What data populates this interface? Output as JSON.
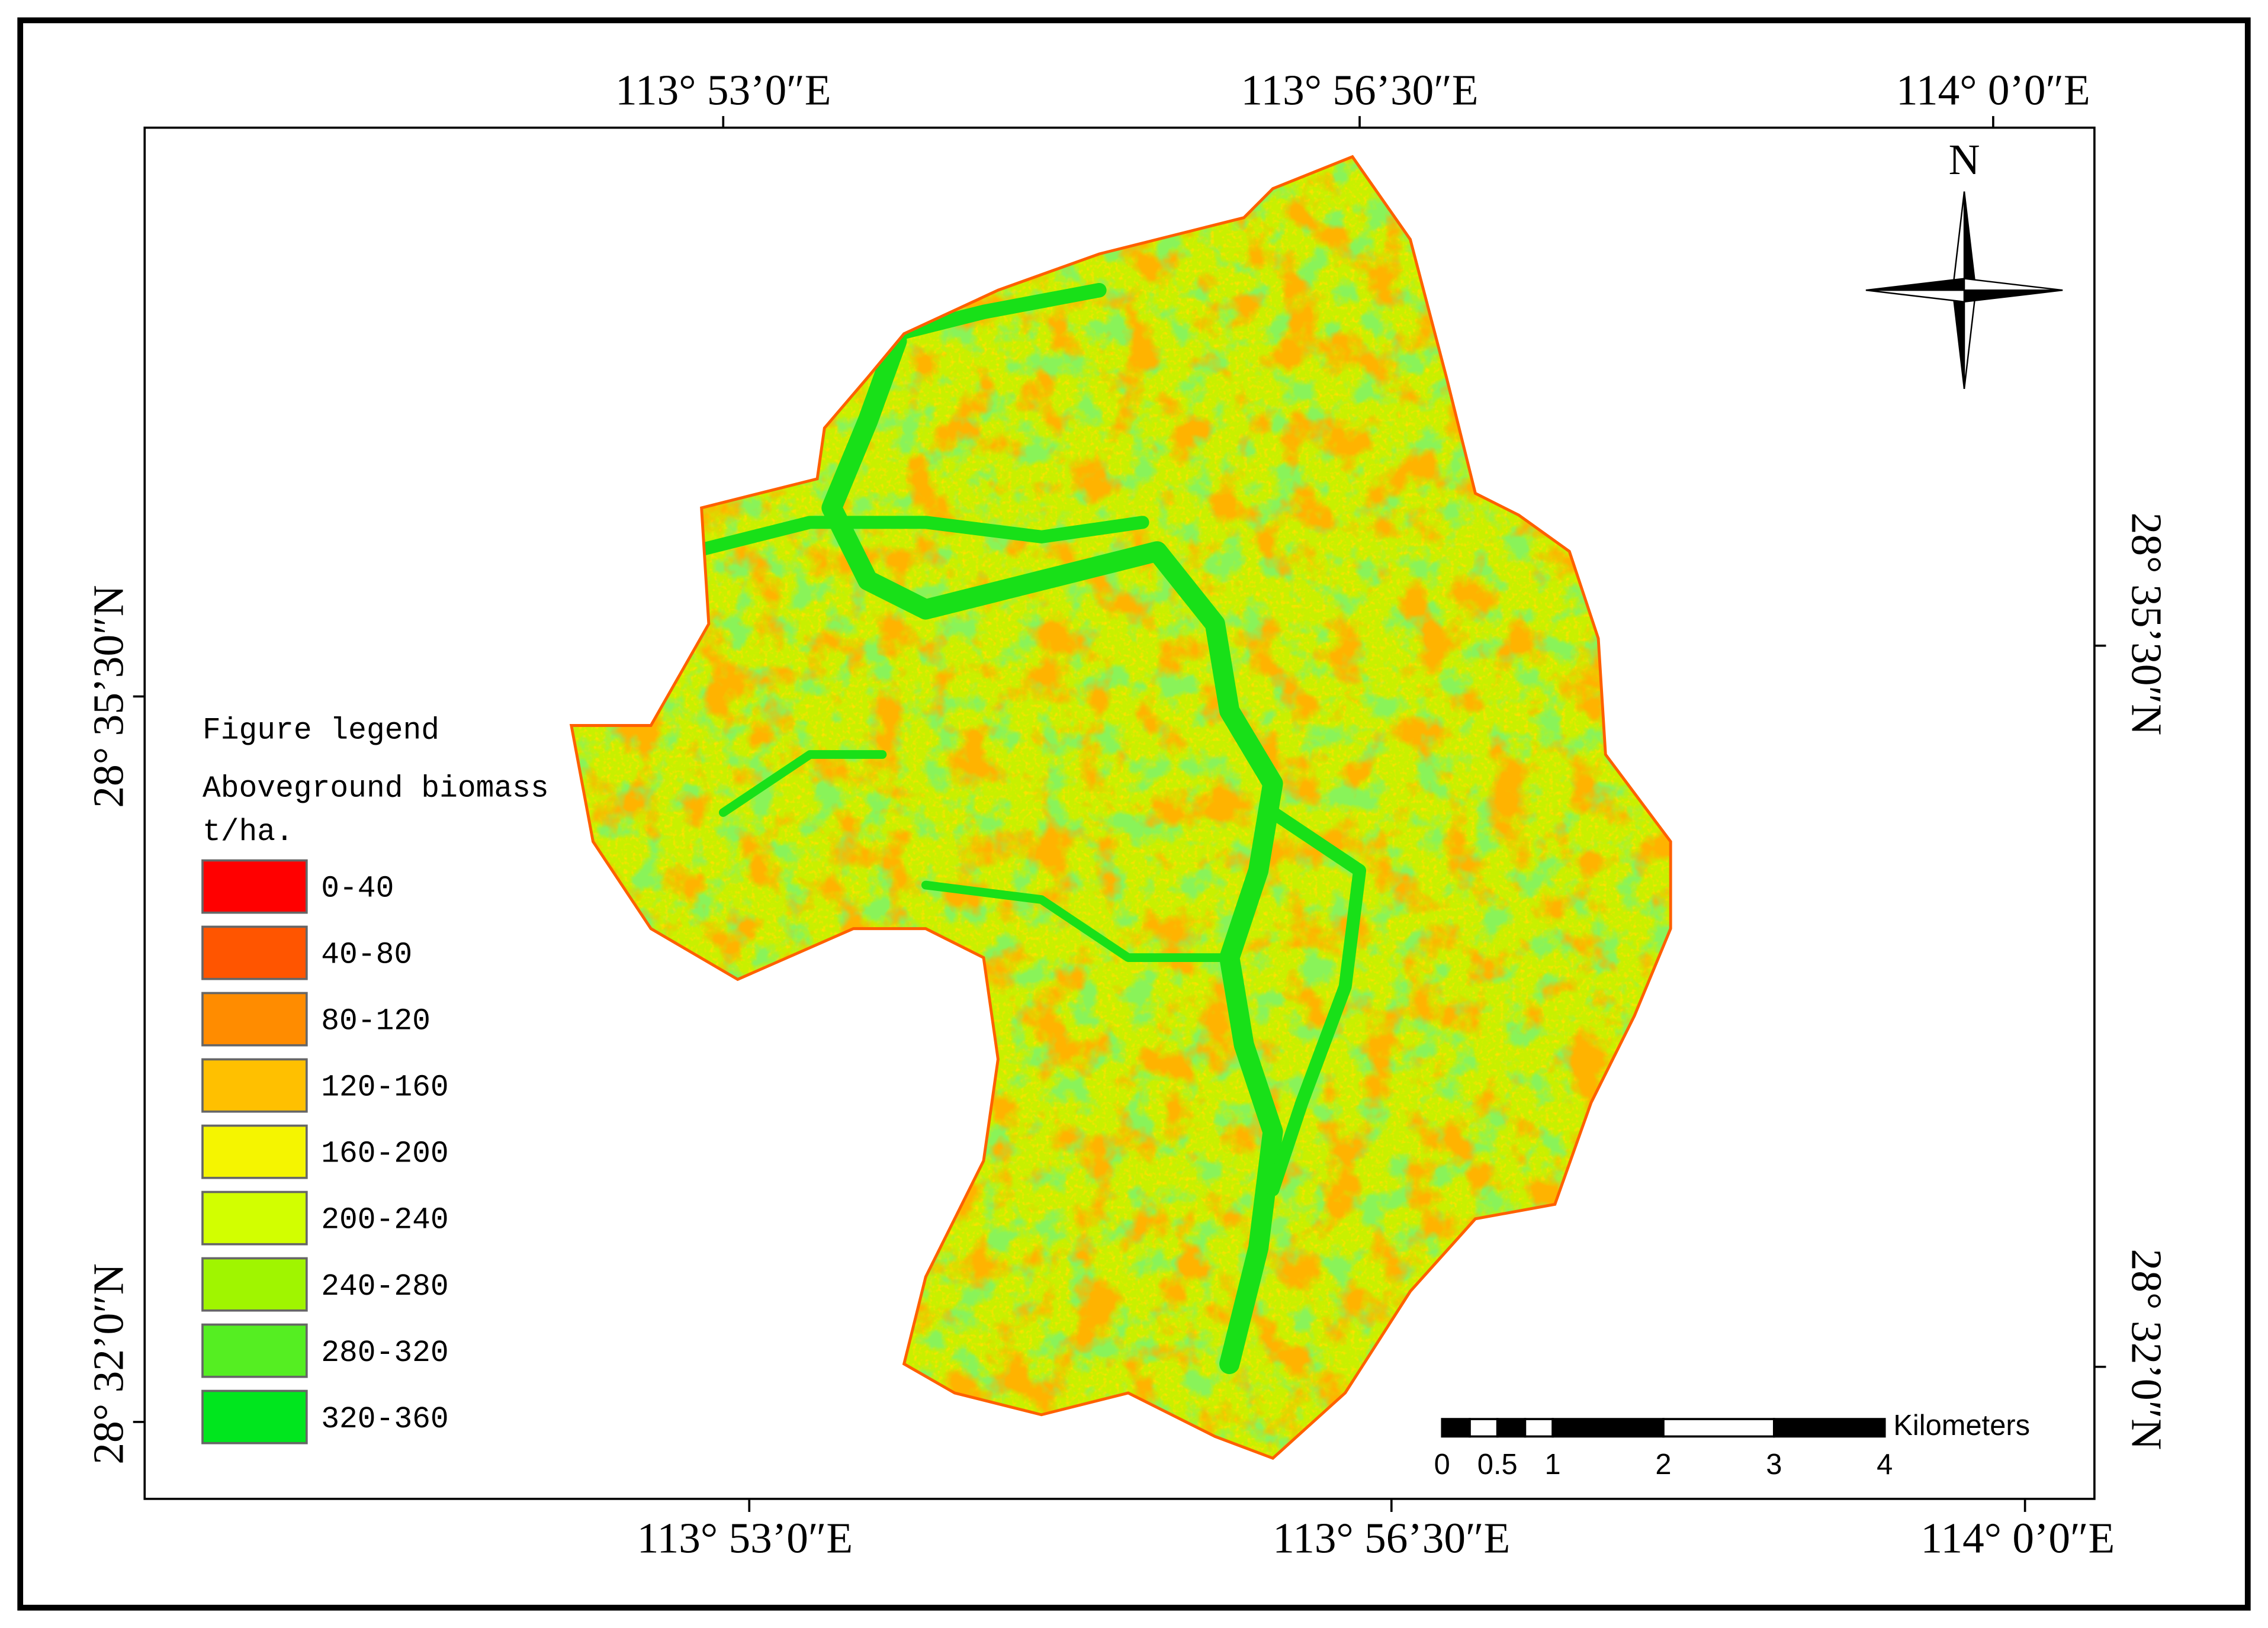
{
  "top_labels": [
    "113° 53’0″E",
    "113° 56’30″E",
    "114° 0’0″E"
  ],
  "bottom_labels": [
    "113° 53’0″E",
    "113° 56’30″E",
    "114° 0’0″E"
  ],
  "left_labels": [
    "28° 35’30″N",
    "28° 32’0″N"
  ],
  "right_labels": [
    "28° 35’30″N",
    "28° 32’0″N"
  ],
  "north": "N",
  "legend": {
    "title": "Figure legend",
    "subtitle": "Aboveground biomass",
    "unit": "t/ha.",
    "classes": [
      {
        "label": "0-40",
        "color": "#ff0000"
      },
      {
        "label": "40-80",
        "color": "#ff5500"
      },
      {
        "label": "80-120",
        "color": "#ff8c00"
      },
      {
        "label": "120-160",
        "color": "#ffc000"
      },
      {
        "label": "160-200",
        "color": "#f5f500"
      },
      {
        "label": "200-240",
        "color": "#d2ff00"
      },
      {
        "label": "240-280",
        "color": "#a0f500"
      },
      {
        "label": "280-320",
        "color": "#55ee22"
      },
      {
        "label": "320-360",
        "color": "#00e61e"
      }
    ]
  },
  "scale_bar": {
    "unit": "Kilometers",
    "labels": [
      "0",
      "0.5",
      "1",
      "2",
      "3",
      "4"
    ]
  }
}
